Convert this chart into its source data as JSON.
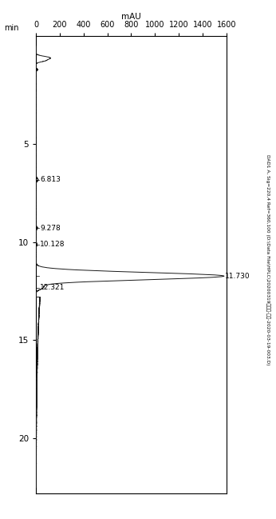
{
  "title": "DAD1 A, Sig=220,4 Ref=360,100 (D:\\Data File\\HPLC\\20200319粗品量-冻品-2020-03-19-003.D)",
  "xlabel": "mAU",
  "ylabel": "min",
  "x_min": 0,
  "x_max": 1600,
  "y_min": 0,
  "y_max": 22,
  "x_ticks": [
    0,
    200,
    400,
    600,
    800,
    1000,
    1200,
    1400,
    1600
  ],
  "y_ticks": [
    5,
    10,
    15,
    20
  ],
  "peak_labels": [
    {
      "time": 6.813,
      "label": "6.813"
    },
    {
      "time": 9.278,
      "label": "9.278"
    },
    {
      "time": 10.128,
      "label": "10.128"
    },
    {
      "time": 11.73,
      "label": "11.730",
      "far_right": true
    },
    {
      "time": 12.321,
      "label": "12.321"
    }
  ],
  "background_color": "#ffffff",
  "line_color": "#1a1a1a",
  "figsize": [
    3.46,
    6.49
  ],
  "dpi": 100
}
